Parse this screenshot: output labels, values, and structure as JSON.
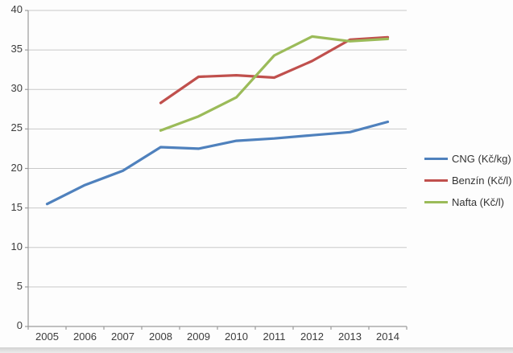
{
  "chart_data": {
    "type": "line",
    "categories": [
      "2005",
      "2006",
      "2007",
      "2008",
      "2009",
      "2010",
      "2011",
      "2012",
      "2013",
      "2014"
    ],
    "series": [
      {
        "name": "CNG (Kč/kg)",
        "color": "#4F81BD",
        "values": [
          15.5,
          17.9,
          19.7,
          22.7,
          22.5,
          23.5,
          23.8,
          24.2,
          24.6,
          25.9
        ]
      },
      {
        "name": "Benzín (Kč/l)",
        "color": "#C0504D",
        "values": [
          null,
          null,
          null,
          28.3,
          31.6,
          31.8,
          31.5,
          33.6,
          36.3,
          36.6
        ]
      },
      {
        "name": "Nafta (Kč/l)",
        "color": "#9BBB59",
        "values": [
          null,
          null,
          null,
          24.8,
          26.6,
          29.0,
          34.3,
          36.7,
          36.1,
          36.4
        ]
      }
    ],
    "title": "",
    "xlabel": "",
    "ylabel": "",
    "ylim": [
      0,
      40
    ],
    "ytick_step": 5,
    "yticks": [
      "0",
      "5",
      "10",
      "15",
      "20",
      "25",
      "30",
      "35",
      "40"
    ],
    "grid": true,
    "legend_position": "right"
  },
  "colors": {
    "gridline": "#c9c9c9",
    "axis": "#9b9b9b",
    "label_text": "#3c3c3c",
    "background": "#fdfdfd",
    "bottom_band": "#d9d9d9"
  }
}
